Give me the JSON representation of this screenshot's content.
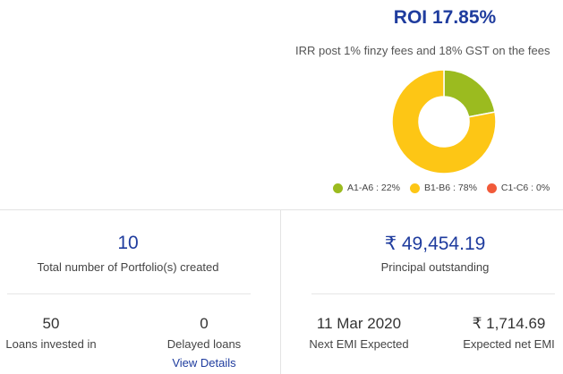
{
  "roi": {
    "title": "ROI 17.85%",
    "subtitle": "IRR post 1% finzy fees and 18% GST on the fees"
  },
  "chart_data": {
    "type": "pie",
    "categories": [
      "A1-A6",
      "B1-B6",
      "C1-C6"
    ],
    "values": [
      22,
      78,
      0
    ],
    "colors": [
      "#9bbb1f",
      "#fdc615",
      "#f15a3a"
    ],
    "legend_placement": "bottom"
  },
  "legend": [
    {
      "label": "A1-A6 : 22%",
      "color": "#9bbb1f"
    },
    {
      "label": "B1-B6 : 78%",
      "color": "#fdc615"
    },
    {
      "label": "C1-C6 : 0%",
      "color": "#f15a3a"
    }
  ],
  "portfolio": {
    "count": "10",
    "count_label": "Total number of Portfolio(s) created",
    "loans_invested": "50",
    "loans_invested_label": "Loans invested in",
    "delayed_loans": "0",
    "delayed_loans_label": "Delayed loans",
    "view_details": "View Details"
  },
  "outstanding": {
    "principal": "₹ 49,454.19",
    "principal_label": "Principal outstanding",
    "next_emi_date": "11 Mar 2020",
    "next_emi_label": "Next EMI Expected",
    "expected_emi": "₹ 1,714.69",
    "expected_emi_label": "Expected net EMI"
  },
  "colors": {
    "accent": "#1f3c9e"
  }
}
